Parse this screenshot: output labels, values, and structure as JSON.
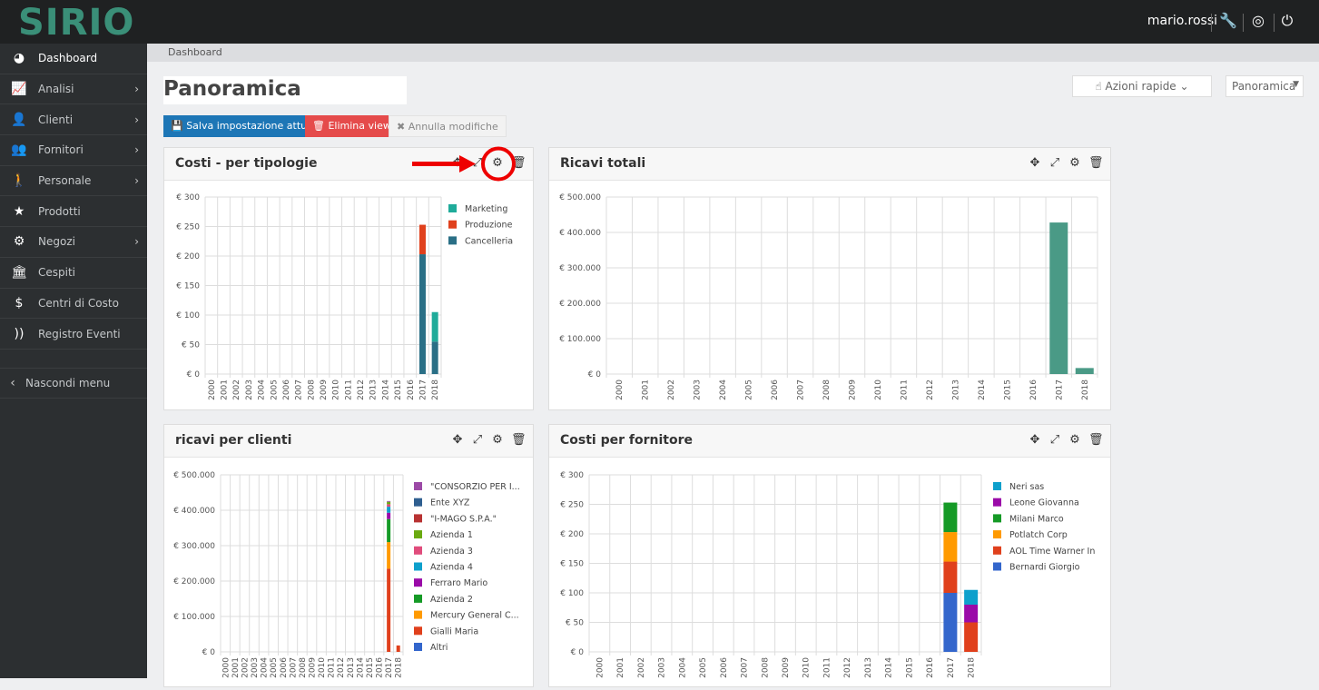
{
  "header": {
    "logo": "SIRIO",
    "user": "mario.rossi",
    "icons": [
      "wrench-icon",
      "lifebuoy-icon",
      "power-icon"
    ]
  },
  "sidebar": {
    "items": [
      {
        "label": "Dashboard",
        "icon": "dashboard-icon",
        "glyph": "◕",
        "chevron": false
      },
      {
        "label": "Analisi",
        "icon": "line-chart-icon",
        "glyph": "📈",
        "chevron": true
      },
      {
        "label": "Clienti",
        "icon": "user-icon",
        "glyph": "👤",
        "chevron": true
      },
      {
        "label": "Fornitori",
        "icon": "users-icon",
        "glyph": "👥",
        "chevron": true
      },
      {
        "label": "Personale",
        "icon": "male-icon",
        "glyph": "🚶",
        "chevron": true
      },
      {
        "label": "Prodotti",
        "icon": "star-icon",
        "glyph": "★",
        "chevron": false
      },
      {
        "label": "Negozi",
        "icon": "gear-icon",
        "glyph": "⚙",
        "chevron": true
      },
      {
        "label": "Cespiti",
        "icon": "bank-icon",
        "glyph": "🏛",
        "chevron": false
      },
      {
        "label": "Centri di Costo",
        "icon": "dollar-icon",
        "glyph": "$",
        "chevron": false
      },
      {
        "label": "Registro Eventi",
        "icon": "rss-icon",
        "glyph": "))",
        "chevron": false
      }
    ],
    "hide_label": "Nascondi menu"
  },
  "breadcrumb": "Dashboard",
  "page_title": "Panoramica",
  "toolbar": {
    "save": "Salva impostazione attuale",
    "delete": "Elimina view",
    "cancel": "Annulla modifiche",
    "quick_actions": "Azioni rapide",
    "view_select": "Panoramica"
  },
  "panels": [
    {
      "title": "Costi - per tipologie"
    },
    {
      "title": "Ricavi totali"
    },
    {
      "title": "ricavi per clienti"
    },
    {
      "title": "Costi per fornitore"
    }
  ],
  "chart_data": [
    {
      "type": "bar",
      "stacked": true,
      "title": "Costi - per tipologie",
      "categories": [
        "2000",
        "2001",
        "2002",
        "2003",
        "2004",
        "2005",
        "2006",
        "2007",
        "2008",
        "2009",
        "2010",
        "2011",
        "2012",
        "2013",
        "2014",
        "2015",
        "2016",
        "2017",
        "2018"
      ],
      "yticks": [
        "€ 0",
        "€ 50",
        "€ 100",
        "€ 150",
        "€ 200",
        "€ 250",
        "€ 300"
      ],
      "ylim": [
        0,
        300
      ],
      "legend": "right",
      "grid": true,
      "series": [
        {
          "name": "Marketing",
          "color": "#1fab9a",
          "values": {
            "2018": 50
          }
        },
        {
          "name": "Produzione",
          "color": "#e0401c",
          "values": {
            "2017": 50
          }
        },
        {
          "name": "Cancelleria",
          "color": "#2a6f86",
          "values": {
            "2017": 203,
            "2018": 55
          }
        }
      ]
    },
    {
      "type": "bar",
      "stacked": false,
      "title": "Ricavi totali",
      "categories": [
        "2000",
        "2001",
        "2002",
        "2003",
        "2004",
        "2005",
        "2006",
        "2007",
        "2008",
        "2009",
        "2010",
        "2011",
        "2012",
        "2013",
        "2014",
        "2015",
        "2016",
        "2017",
        "2018"
      ],
      "yticks": [
        "€ 0",
        "€ 100.000",
        "€ 200.000",
        "€ 300.000",
        "€ 400.000",
        "€ 500.000"
      ],
      "ylim": [
        0,
        500000
      ],
      "legend": "none",
      "grid": true,
      "series": [
        {
          "color": "#4a9a86",
          "values": {
            "2017": 428000,
            "2018": 17000
          }
        }
      ]
    },
    {
      "type": "bar",
      "stacked": true,
      "title": "ricavi per clienti",
      "categories": [
        "2000",
        "2001",
        "2002",
        "2003",
        "2004",
        "2005",
        "2006",
        "2007",
        "2008",
        "2009",
        "2010",
        "2011",
        "2012",
        "2013",
        "2014",
        "2015",
        "2016",
        "2017",
        "2018"
      ],
      "yticks": [
        "€ 0",
        "€ 100.000",
        "€ 200.000",
        "€ 300.000",
        "€ 400.000",
        "€ 500.000"
      ],
      "ylim": [
        0,
        500000
      ],
      "legend": "right",
      "grid": true,
      "series": [
        {
          "name": "\"CONSORZIO PER I...",
          "color": "#9c4aa6",
          "values": {
            "2017": 1000
          }
        },
        {
          "name": "Ente XYZ",
          "color": "#2f5f90",
          "values": {
            "2017": 1000
          }
        },
        {
          "name": "\"I-MAGO S.P.A.\"",
          "color": "#b83232",
          "values": {
            "2017": 1000
          }
        },
        {
          "name": "Azienda 1",
          "color": "#6aaa10",
          "values": {
            "2017": 6000
          }
        },
        {
          "name": "Azienda 3",
          "color": "#e04c7c",
          "values": {
            "2017": 7000
          }
        },
        {
          "name": "Azienda 4",
          "color": "#0ea0cc",
          "values": {
            "2017": 17000
          }
        },
        {
          "name": "Ferraro Mario",
          "color": "#9a0aa8",
          "values": {
            "2017": 18000
          }
        },
        {
          "name": "Azienda 2",
          "color": "#159a26",
          "values": {
            "2017": 65000
          }
        },
        {
          "name": "Mercury General C...",
          "color": "#ff9a00",
          "values": {
            "2017": 75000
          }
        },
        {
          "name": "Gialli Maria",
          "color": "#e0401c",
          "values": {
            "2017": 235000,
            "2018": 18000
          }
        },
        {
          "name": "Altri",
          "color": "#3366cc",
          "values": {}
        }
      ]
    },
    {
      "type": "bar",
      "stacked": true,
      "title": "Costi per fornitore",
      "categories": [
        "2000",
        "2001",
        "2002",
        "2003",
        "2004",
        "2005",
        "2006",
        "2007",
        "2008",
        "2009",
        "2010",
        "2011",
        "2012",
        "2013",
        "2014",
        "2015",
        "2016",
        "2017",
        "2018"
      ],
      "yticks": [
        "€ 0",
        "€ 50",
        "€ 100",
        "€ 150",
        "€ 200",
        "€ 250",
        "€ 300"
      ],
      "ylim": [
        0,
        300
      ],
      "legend": "right",
      "grid": true,
      "series": [
        {
          "name": "Neri sas",
          "color": "#0ea0cc",
          "values": {
            "2018": 25
          }
        },
        {
          "name": "Leone Giovanna",
          "color": "#9a0aa8",
          "values": {
            "2018": 30
          }
        },
        {
          "name": "Milani Marco",
          "color": "#159a26",
          "values": {
            "2017": 50
          }
        },
        {
          "name": "Potlatch Corp",
          "color": "#ff9a00",
          "values": {
            "2017": 50
          }
        },
        {
          "name": "AOL Time Warner In",
          "color": "#e0401c",
          "values": {
            "2017": 53,
            "2018": 50
          }
        },
        {
          "name": "Bernardi Giorgio",
          "color": "#3366cc",
          "values": {
            "2017": 100
          }
        }
      ]
    }
  ]
}
